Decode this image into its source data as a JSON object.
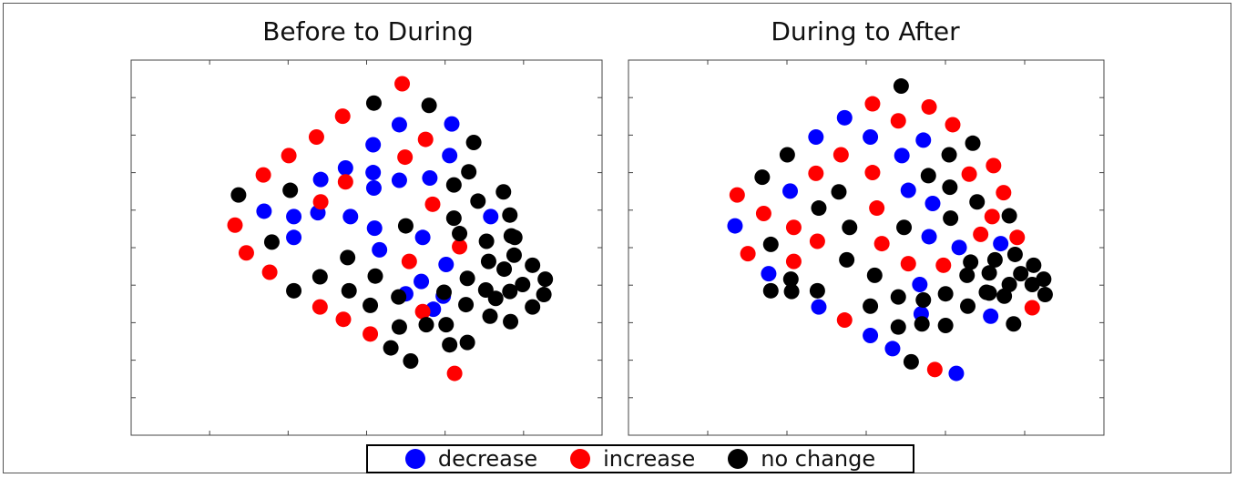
{
  "colors": {
    "decrease": "#0000ff",
    "increase": "#ff0000",
    "no_change": "#000000"
  },
  "legend": {
    "decrease": "decrease",
    "increase": "increase",
    "no_change": "no change"
  },
  "chart_data": [
    {
      "type": "scatter",
      "title": "Before to During",
      "xlabel": "",
      "ylabel": "",
      "xlim": [
        0,
        520
      ],
      "ylim": [
        0,
        410
      ],
      "grid": false,
      "legend_position": "bottom-center",
      "series": [
        {
          "name": "decrease",
          "points": [
            [
              304,
              53
            ],
            [
              378,
              52
            ],
            [
              267,
              79
            ],
            [
              228,
              109
            ],
            [
              375,
              93
            ],
            [
              267,
              115
            ],
            [
              193,
              124
            ],
            [
              268,
              135
            ],
            [
              304,
              125
            ],
            [
              347,
              122
            ],
            [
              113,
              165
            ],
            [
              155,
              172
            ],
            [
              189,
              167
            ],
            [
              235,
              172
            ],
            [
              269,
              187
            ],
            [
              337,
              199
            ],
            [
              155,
              199
            ],
            [
              433,
              172
            ],
            [
              276,
              215
            ],
            [
              370,
              234
            ],
            [
              335,
              256
            ],
            [
              313,
              272
            ],
            [
              352,
              292
            ],
            [
              366,
              275
            ]
          ]
        },
        {
          "name": "increase",
          "points": [
            [
              308,
              0
            ],
            [
              224,
              42
            ],
            [
              187,
              69
            ],
            [
              148,
              93
            ],
            [
              112,
              118
            ],
            [
              228,
              127
            ],
            [
              193,
              153
            ],
            [
              312,
              95
            ],
            [
              341,
              72
            ],
            [
              351,
              156
            ],
            [
              72,
              183
            ],
            [
              88,
              219
            ],
            [
              121,
              244
            ],
            [
              389,
              211
            ],
            [
              318,
              230
            ],
            [
              192,
              289
            ],
            [
              225,
              305
            ],
            [
              263,
              324
            ],
            [
              337,
              295
            ],
            [
              382,
              375
            ]
          ]
        },
        {
          "name": "no change",
          "points": [
            [
              268,
              25
            ],
            [
              346,
              28
            ],
            [
              409,
              76
            ],
            [
              77,
              144
            ],
            [
              150,
              138
            ],
            [
              402,
              114
            ],
            [
              381,
              131
            ],
            [
              415,
              152
            ],
            [
              451,
              140
            ],
            [
              313,
              184
            ],
            [
              381,
              174
            ],
            [
              460,
              170
            ],
            [
              124,
              205
            ],
            [
              389,
              194
            ],
            [
              427,
              204
            ],
            [
              467,
              199
            ],
            [
              231,
              225
            ],
            [
              270,
              249
            ],
            [
              462,
              197
            ],
            [
              466,
              222
            ],
            [
              492,
              235
            ],
            [
              510,
              253
            ],
            [
              508,
              273
            ],
            [
              192,
              250
            ],
            [
              155,
              268
            ],
            [
              233,
              268
            ],
            [
              303,
              276
            ],
            [
              367,
              270
            ],
            [
              400,
              252
            ],
            [
              430,
              230
            ],
            [
              452,
              240
            ],
            [
              426,
              267
            ],
            [
              460,
              269
            ],
            [
              440,
              278
            ],
            [
              478,
              260
            ],
            [
              492,
              289
            ],
            [
              263,
              287
            ],
            [
              304,
              315
            ],
            [
              342,
              312
            ],
            [
              370,
              312
            ],
            [
              398,
              286
            ],
            [
              432,
              301
            ],
            [
              461,
              308
            ],
            [
              400,
              335
            ],
            [
              292,
              342
            ],
            [
              320,
              359
            ],
            [
              375,
              338
            ]
          ]
        }
      ]
    },
    {
      "type": "scatter",
      "title": "During to After",
      "xlabel": "",
      "ylabel": "",
      "xlim": [
        0,
        520
      ],
      "ylim": [
        0,
        410
      ],
      "grid": false,
      "legend_position": "bottom-center",
      "series": [
        {
          "name": "decrease",
          "points": [
            [
              228,
              44
            ],
            [
              188,
              69
            ],
            [
              264,
              69
            ],
            [
              308,
              93
            ],
            [
              338,
              73
            ],
            [
              152,
              139
            ],
            [
              317,
              138
            ],
            [
              351,
              155
            ],
            [
              75,
              184
            ],
            [
              346,
              198
            ],
            [
              388,
              212
            ],
            [
              446,
              207
            ],
            [
              122,
              246
            ],
            [
              333,
              260
            ],
            [
              192,
              289
            ],
            [
              335,
              298
            ],
            [
              264,
              326
            ],
            [
              295,
              343
            ],
            [
              384,
              375
            ],
            [
              432,
              301
            ]
          ]
        },
        {
          "name": "increase",
          "points": [
            [
              267,
              26
            ],
            [
              303,
              48
            ],
            [
              346,
              30
            ],
            [
              379,
              53
            ],
            [
              223,
              92
            ],
            [
              188,
              116
            ],
            [
              267,
              115
            ],
            [
              115,
              168
            ],
            [
              402,
              117
            ],
            [
              436,
              106
            ],
            [
              450,
              141
            ],
            [
              78,
              144
            ],
            [
              273,
              161
            ],
            [
              434,
              172
            ],
            [
              157,
              186
            ],
            [
              190,
              204
            ],
            [
              280,
              207
            ],
            [
              418,
              195
            ],
            [
              469,
              199
            ],
            [
              93,
              220
            ],
            [
              157,
              230
            ],
            [
              317,
              233
            ],
            [
              366,
              235
            ],
            [
              228,
              306
            ],
            [
              354,
              370
            ],
            [
              490,
              290
            ]
          ]
        },
        {
          "name": "no change",
          "points": [
            [
              307,
              3
            ],
            [
              148,
              92
            ],
            [
              113,
              121
            ],
            [
              220,
              140
            ],
            [
              345,
              119
            ],
            [
              374,
              92
            ],
            [
              407,
              77
            ],
            [
              375,
              134
            ],
            [
              413,
              153
            ],
            [
              458,
              171
            ],
            [
              192,
              161
            ],
            [
              235,
              186
            ],
            [
              311,
              186
            ],
            [
              376,
              174
            ],
            [
              125,
              208
            ],
            [
              231,
              228
            ],
            [
              270,
              248
            ],
            [
              404,
              231
            ],
            [
              430,
              245
            ],
            [
              458,
              260
            ],
            [
              492,
              235
            ],
            [
              506,
              253
            ],
            [
              508,
              273
            ],
            [
              153,
              253
            ],
            [
              190,
              268
            ],
            [
              264,
              288
            ],
            [
              303,
              276
            ],
            [
              338,
              280
            ],
            [
              369,
              272
            ],
            [
              399,
              248
            ],
            [
              438,
              228
            ],
            [
              466,
              221
            ],
            [
              474,
              246
            ],
            [
              490,
              260
            ],
            [
              451,
              275
            ],
            [
              426,
              270
            ],
            [
              154,
              269
            ],
            [
              125,
              268
            ],
            [
              303,
              315
            ],
            [
              336,
              311
            ],
            [
              369,
              313
            ],
            [
              400,
              288
            ],
            [
              430,
              271
            ],
            [
              464,
              311
            ],
            [
              321,
              360
            ]
          ]
        }
      ]
    }
  ]
}
